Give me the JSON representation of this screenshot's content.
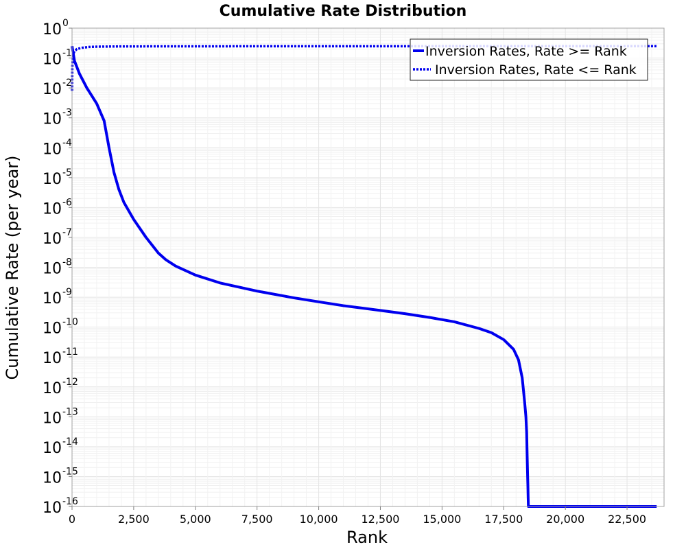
{
  "chart_data": {
    "type": "line",
    "title": "Cumulative Rate Distribution",
    "xlabel": "Rank",
    "ylabel": "Cumulative Rate (per year)",
    "xlim": [
      0,
      24000
    ],
    "ylim": [
      1e-16,
      1
    ],
    "yscale": "log",
    "grid": true,
    "legend_position": "top-right",
    "x_ticks": [
      "0",
      "2,500",
      "5,000",
      "7,500",
      "10,000",
      "12,500",
      "15,000",
      "17,500",
      "20,000",
      "22,500"
    ],
    "x_tick_values": [
      0,
      2500,
      5000,
      7500,
      10000,
      12500,
      15000,
      17500,
      20000,
      22500
    ],
    "y_tick_base": "10",
    "y_tick_exponents": [
      "0",
      "-1",
      "-2",
      "-3",
      "-4",
      "-5",
      "-6",
      "-7",
      "-8",
      "-9",
      "-10",
      "-11",
      "-12",
      "-13",
      "-14",
      "-15",
      "-16"
    ],
    "series": [
      {
        "name": "Inversion Rates, Rate >= Rank",
        "color": "#0000ee",
        "style": "solid",
        "x": [
          0,
          100,
          300,
          600,
          1000,
          1300,
          1500,
          1700,
          1900,
          2100,
          2500,
          3000,
          3500,
          3800,
          4200,
          5000,
          6000,
          7500,
          9000,
          10000,
          11000,
          12500,
          13500,
          14500,
          15500,
          16500,
          17000,
          17500,
          17900,
          18100,
          18250,
          18350,
          18400,
          18430,
          18450,
          18470,
          18480,
          18490,
          18500,
          18500,
          20000,
          22500,
          23700
        ],
        "y": [
          0.25,
          0.08,
          0.03,
          0.01,
          0.003,
          0.0008,
          0.0001,
          1.5e-05,
          4e-06,
          1.5e-06,
          4e-07,
          1e-07,
          3e-08,
          1.8e-08,
          1.1e-08,
          5.5e-09,
          3e-09,
          1.6e-09,
          9.5e-10,
          7e-10,
          5.2e-10,
          3.6e-10,
          2.8e-10,
          2.1e-10,
          1.5e-10,
          9e-11,
          6.5e-11,
          3.8e-11,
          1.8e-11,
          8e-12,
          2e-12,
          3e-13,
          1e-13,
          3e-14,
          5e-15,
          1e-15,
          5e-16,
          2e-16,
          1e-16,
          1e-16,
          1e-16,
          1e-16,
          1e-16
        ]
      },
      {
        "name": "Inversion Rates, Rate <= Rank",
        "color": "#0000ee",
        "style": "dotted",
        "x": [
          0,
          10,
          30,
          60,
          100,
          200,
          400,
          700,
          1000,
          2000,
          5000,
          10000,
          15000,
          20000,
          23700
        ],
        "y": [
          0.008,
          0.05,
          0.1,
          0.14,
          0.17,
          0.2,
          0.22,
          0.235,
          0.24,
          0.245,
          0.247,
          0.248,
          0.249,
          0.25,
          0.25
        ]
      }
    ]
  }
}
